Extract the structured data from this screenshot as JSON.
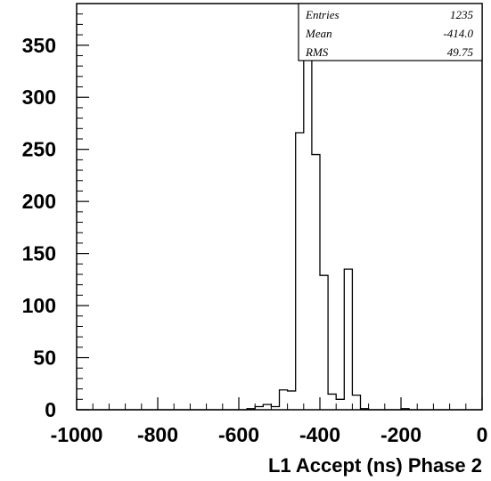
{
  "chart_data": {
    "type": "bar",
    "title": "",
    "xlabel": "L1 Accept (ns) Phase 2",
    "ylabel": "",
    "xlim": [
      -1000,
      0
    ],
    "ylim": [
      0,
      390
    ],
    "grid": false,
    "legend": "none",
    "x_ticks": [
      -1000,
      -800,
      -600,
      -400,
      -200,
      0
    ],
    "x_tick_labels": [
      "-1000",
      "-800",
      "-600",
      "-400",
      "-200",
      "0"
    ],
    "y_ticks": [
      0,
      50,
      100,
      150,
      200,
      250,
      300,
      350
    ],
    "y_tick_labels": [
      "0",
      "50",
      "100",
      "150",
      "200",
      "250",
      "300",
      "350"
    ],
    "bin_width": 20,
    "bins": [
      {
        "x": -580,
        "value": 1
      },
      {
        "x": -560,
        "value": 3
      },
      {
        "x": -540,
        "value": 5
      },
      {
        "x": -520,
        "value": 3
      },
      {
        "x": -500,
        "value": 19
      },
      {
        "x": -480,
        "value": 18
      },
      {
        "x": -460,
        "value": 266
      },
      {
        "x": -440,
        "value": 353
      },
      {
        "x": -420,
        "value": 245
      },
      {
        "x": -400,
        "value": 129
      },
      {
        "x": -380,
        "value": 15
      },
      {
        "x": -360,
        "value": 10
      },
      {
        "x": -340,
        "value": 135
      },
      {
        "x": -320,
        "value": 14
      },
      {
        "x": -300,
        "value": 1
      },
      {
        "x": -200,
        "value": 1
      }
    ],
    "stats": [
      {
        "label": "Entries",
        "value": "1235"
      },
      {
        "label": "Mean",
        "value": "-414.0"
      },
      {
        "label": "RMS",
        "value": "49.75"
      }
    ],
    "stats_position": "top-right",
    "colors": {
      "line": "#000000",
      "background": "#ffffff"
    }
  }
}
